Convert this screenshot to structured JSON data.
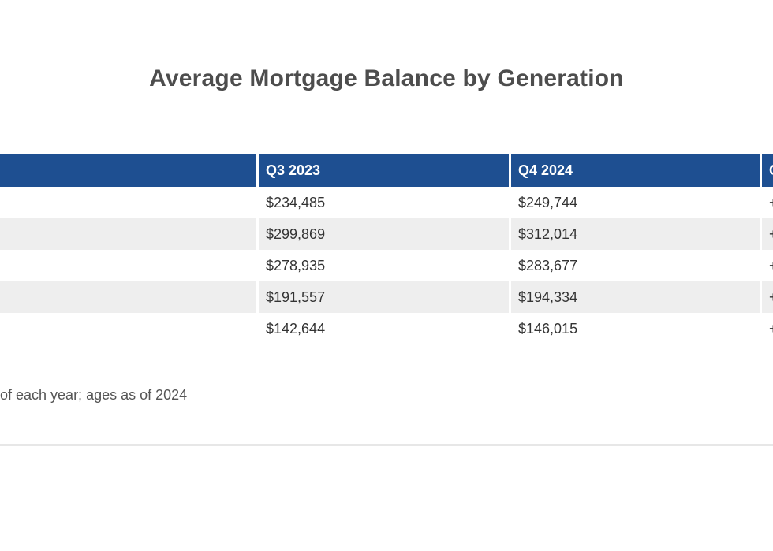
{
  "page": {
    "title": "Average Mortgage Balance by Generation",
    "footnote": "of each year; ages as of 2024"
  },
  "colors": {
    "header_bg": "#1e4f91",
    "header_text": "#ffffff",
    "alt_row_bg": "#eeeeee",
    "cell_text": "#333333",
    "title_text": "#4d4d4d",
    "divider": "#e7e7e7"
  },
  "chart_data": {
    "type": "table",
    "title": "Average Mortgage Balance by Generation",
    "columns": [
      "",
      "Q3 2023",
      "Q4 2024",
      "Change"
    ],
    "rows": [
      [
        "",
        "$234,485",
        "$249,744",
        "+"
      ],
      [
        "",
        "$299,869",
        "$312,014",
        "+"
      ],
      [
        "",
        "$278,935",
        "$283,677",
        "+"
      ],
      [
        "",
        "$191,557",
        "$194,334",
        "+"
      ],
      [
        "",
        "$142,644",
        "$146,015",
        "+"
      ]
    ],
    "footnote": "of each year; ages as of 2024",
    "layout_hints": {
      "row_striping": "alternating white / light gray",
      "cropped_left_column_labels": true,
      "cropped_right_change_column": true,
      "legend": "none",
      "grid": "off"
    }
  }
}
